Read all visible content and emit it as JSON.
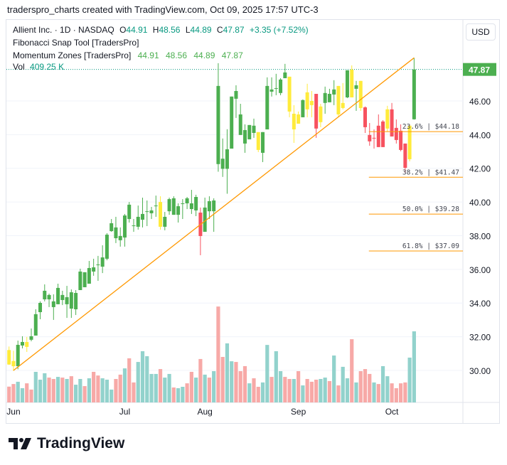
{
  "caption": "traderspro_charts created with TradingView.com, Oct 09, 2025 17:57 UTC-3",
  "legend": {
    "symbol": "Allient Inc. · 1D · NASDAQ",
    "o_label": "O",
    "o": "44.91",
    "h_label": "H",
    "h": "48.56",
    "l_label": "L",
    "l": "44.89",
    "c_label": "C",
    "c": "47.87",
    "change": "+3.35 (+7.52%)",
    "indicator1": "Fibonacci Snap Tool [TradersPro]",
    "indicator2": "Momentum Zones [TradersPro]",
    "indicator2_values": [
      "44.91",
      "48.56",
      "44.89",
      "47.87"
    ],
    "vol_label": "Vol",
    "vol": "409.25 K"
  },
  "currency_button": "USD",
  "last_price_label": "47.87",
  "logo_text": "TradingView",
  "colors": {
    "green": "#4caf50",
    "red": "#f7525f",
    "yellow": "#ffeb3b",
    "vol_up": "#92d2cc",
    "vol_down": "#f7a9a7",
    "trend": "#ff9800",
    "fib": "#ff9800",
    "last": "#089981"
  },
  "chart_data": {
    "type": "candlestick",
    "price_axis": {
      "ticks": [
        "46.00",
        "44.00",
        "42.00",
        "40.00",
        "38.00",
        "36.00",
        "34.00",
        "32.00",
        "30.00"
      ],
      "tick_values": [
        46,
        44,
        42,
        40,
        38,
        36,
        34,
        32,
        30
      ]
    },
    "time_axis": {
      "labels": [
        "Jun",
        "Jul",
        "Aug",
        "Sep",
        "Oct"
      ],
      "label_bar_index": [
        1,
        26,
        44,
        65,
        86
      ]
    },
    "candles": [
      [
        30.35,
        31.42,
        30.33,
        31.21,
        "y"
      ],
      [
        30.25,
        31.17,
        29.97,
        30.56,
        "y"
      ],
      [
        30.25,
        31.77,
        30.07,
        31.52,
        "g"
      ],
      [
        31.48,
        32.03,
        31.31,
        31.69,
        "g"
      ],
      [
        31.4,
        31.99,
        31.1,
        31.69,
        "y"
      ],
      [
        31.82,
        32.49,
        31.73,
        32.03,
        "g"
      ],
      [
        32.07,
        33.63,
        32.07,
        33.34,
        "g"
      ],
      [
        33.46,
        34.1,
        33.04,
        34.01,
        "g"
      ],
      [
        34.22,
        35.11,
        34.1,
        34.73,
        "g"
      ],
      [
        34.22,
        34.56,
        33.76,
        34.48,
        "g"
      ],
      [
        33.76,
        34.52,
        33.0,
        34.1,
        "g"
      ],
      [
        33.93,
        35.15,
        33.93,
        34.9,
        "g"
      ],
      [
        34.18,
        34.73,
        33.88,
        34.48,
        "g"
      ],
      [
        33.93,
        35.02,
        33.12,
        34.35,
        "g"
      ],
      [
        33.67,
        34.81,
        33.12,
        34.64,
        "g"
      ],
      [
        33.63,
        34.77,
        33.29,
        34.6,
        "g"
      ],
      [
        34.77,
        36.04,
        34.77,
        35.87,
        "g"
      ],
      [
        34.94,
        35.83,
        34.94,
        35.83,
        "g"
      ],
      [
        35.15,
        36.5,
        35.15,
        36.08,
        "g"
      ],
      [
        35.87,
        36.63,
        35.62,
        36.12,
        "g"
      ],
      [
        36.25,
        36.8,
        35.32,
        36.29,
        "g"
      ],
      [
        36.16,
        37.43,
        35.78,
        36.71,
        "g"
      ],
      [
        36.63,
        38.15,
        36.54,
        38.06,
        "g"
      ],
      [
        38.27,
        38.99,
        38.23,
        38.74,
        "g"
      ],
      [
        37.85,
        39.12,
        37.56,
        38.49,
        "g"
      ],
      [
        37.73,
        38.49,
        37.35,
        37.98,
        "g"
      ],
      [
        37.89,
        39.29,
        37.35,
        39.2,
        "g"
      ],
      [
        38.99,
        40.0,
        38.78,
        39.84,
        "g"
      ],
      [
        38.57,
        38.99,
        38.23,
        38.61,
        "g"
      ],
      [
        38.53,
        39.79,
        38.36,
        39.12,
        "g"
      ],
      [
        38.95,
        40.26,
        38.49,
        39.29,
        "g"
      ],
      [
        39.41,
        40.09,
        38.57,
        39.45,
        "g"
      ],
      [
        39.33,
        39.71,
        38.99,
        39.5,
        "g"
      ],
      [
        39.75,
        40.38,
        39.12,
        39.79,
        "g"
      ],
      [
        38.53,
        40.34,
        38.36,
        40.0,
        "y"
      ],
      [
        38.53,
        39.41,
        38.32,
        39.12,
        "g"
      ],
      [
        39.45,
        40.26,
        39.24,
        40.17,
        "g"
      ],
      [
        39.24,
        40.34,
        39.24,
        40.22,
        "g"
      ],
      [
        39.24,
        39.92,
        38.78,
        39.75,
        "g"
      ],
      [
        39.88,
        40.17,
        38.99,
        39.92,
        "g"
      ],
      [
        39.92,
        40.3,
        39.58,
        40.22,
        "g"
      ],
      [
        39.58,
        40.72,
        39.29,
        39.92,
        "g"
      ],
      [
        39.5,
        40.43,
        39.16,
        40.3,
        "g"
      ],
      [
        39.37,
        39.67,
        36.84,
        37.98,
        "r"
      ],
      [
        38.23,
        40.26,
        38.23,
        39.67,
        "g"
      ],
      [
        39.45,
        40.34,
        38.99,
        40.05,
        "g"
      ],
      [
        39.45,
        40.22,
        38.23,
        40.09,
        "g"
      ],
      [
        42.25,
        48.24,
        41.8,
        46.89,
        "g"
      ],
      [
        41.97,
        43.77,
        41.49,
        42.57,
        "g"
      ],
      [
        41.97,
        44.32,
        40.49,
        43.13,
        "g"
      ],
      [
        43.17,
        46.26,
        43.17,
        46.26,
        "g"
      ],
      [
        46.13,
        46.93,
        44.99,
        46.59,
        "g"
      ],
      [
        43.98,
        45.83,
        43.98,
        45.2,
        "g"
      ],
      [
        43.47,
        44.61,
        42.92,
        44.27,
        "g"
      ],
      [
        43.72,
        44.57,
        43.72,
        44.57,
        "g"
      ],
      [
        44.1,
        44.95,
        43.81,
        44.53,
        "g"
      ],
      [
        43.09,
        44.15,
        42.96,
        44.15,
        "y"
      ],
      [
        42.92,
        44.15,
        42.37,
        44.15,
        "g"
      ],
      [
        44.31,
        47.4,
        44.31,
        46.89,
        "g"
      ],
      [
        46.55,
        47.4,
        46.26,
        46.68,
        "g"
      ],
      [
        46.72,
        47.61,
        46.34,
        46.76,
        "g"
      ],
      [
        46.47,
        47.35,
        46.34,
        47.27,
        "g"
      ],
      [
        47.35,
        48.2,
        47.35,
        47.69,
        "g"
      ],
      [
        45.37,
        47.44,
        45.03,
        47.44,
        "y"
      ],
      [
        44.31,
        45.75,
        43.51,
        45.24,
        "y"
      ],
      [
        44.65,
        45.37,
        44.65,
        45.2,
        "y"
      ],
      [
        45.03,
        46.09,
        45.03,
        46.05,
        "g"
      ],
      [
        45.5,
        47.02,
        45.03,
        46.51,
        "y"
      ],
      [
        45.75,
        46.59,
        45.03,
        46.0,
        "y"
      ],
      [
        46.42,
        46.42,
        43.81,
        44.36,
        "r"
      ],
      [
        44.74,
        45.83,
        44.44,
        45.67,
        "y"
      ],
      [
        45.88,
        46.85,
        45.24,
        46.47,
        "g"
      ],
      [
        45.92,
        46.72,
        45.92,
        46.42,
        "g"
      ],
      [
        46.38,
        47.23,
        45.75,
        46.68,
        "g"
      ],
      [
        45.2,
        46.89,
        45.07,
        46.89,
        "y"
      ],
      [
        45.58,
        47.06,
        45.5,
        45.88,
        "y"
      ],
      [
        46.21,
        47.82,
        46.17,
        47.82,
        "g"
      ],
      [
        46.21,
        48.11,
        46.21,
        47.86,
        "y"
      ],
      [
        46.72,
        47.19,
        45.41,
        46.93,
        "g"
      ],
      [
        45.58,
        47.19,
        45.41,
        47.19,
        "y"
      ],
      [
        45.62,
        45.67,
        44.1,
        44.44,
        "r"
      ],
      [
        43.98,
        44.69,
        43.34,
        43.6,
        "r"
      ],
      [
        43.81,
        44.31,
        43.17,
        43.77,
        "r"
      ],
      [
        44.53,
        45.2,
        43.26,
        43.26,
        "r"
      ],
      [
        44.78,
        44.86,
        43.26,
        43.26,
        "r"
      ],
      [
        44.36,
        45.71,
        44.19,
        45.5,
        "y"
      ],
      [
        45.5,
        45.88,
        43.89,
        43.89,
        "r"
      ],
      [
        44.4,
        44.9,
        43.47,
        43.68,
        "r"
      ],
      [
        44.23,
        44.61,
        43.01,
        43.09,
        "r"
      ],
      [
        43.47,
        43.47,
        41.74,
        42.03,
        "r"
      ],
      [
        42.54,
        44.61,
        42.41,
        44.53,
        "y"
      ],
      [
        44.91,
        48.56,
        44.89,
        47.87,
        "g"
      ]
    ],
    "volume_k": [
      91,
      106,
      119,
      82,
      110,
      74,
      176,
      131,
      168,
      143,
      135,
      147,
      143,
      135,
      151,
      102,
      135,
      94,
      139,
      176,
      155,
      139,
      131,
      74,
      135,
      160,
      196,
      254,
      115,
      233,
      295,
      266,
      164,
      164,
      192,
      143,
      164,
      86,
      82,
      90,
      110,
      176,
      143,
      250,
      160,
      143,
      180,
      552,
      262,
      340,
      237,
      233,
      180,
      209,
      110,
      139,
      90,
      115,
      331,
      147,
      295,
      180,
      147,
      135,
      135,
      180,
      98,
      135,
      119,
      131,
      135,
      143,
      123,
      270,
      98,
      205,
      139,
      364,
      115,
      180,
      192,
      164,
      115,
      106,
      209,
      151,
      110,
      82,
      110,
      115,
      258,
      409.25
    ],
    "volume_dir": "rrggrrgggrrgrgrggrgrrgggrrgrrgggggrggrggrrgrgrgrrggrrrgrrggrggrrgrgrrrggrgrggrgrrrgrggrrrrgg",
    "trendline": {
      "from_bar": 1,
      "from_price": 30.0,
      "to_bar": 91,
      "to_price": 48.56
    },
    "fib_levels": [
      {
        "label": "23.6% | $44.18",
        "price": 44.18
      },
      {
        "label": "38.2% | $41.47",
        "price": 41.47
      },
      {
        "label": "50.0% | $39.28",
        "price": 39.28
      },
      {
        "label": "61.8% | $37.09",
        "price": 37.09
      }
    ],
    "fib_start_bar": 81,
    "last_price": 47.87
  }
}
